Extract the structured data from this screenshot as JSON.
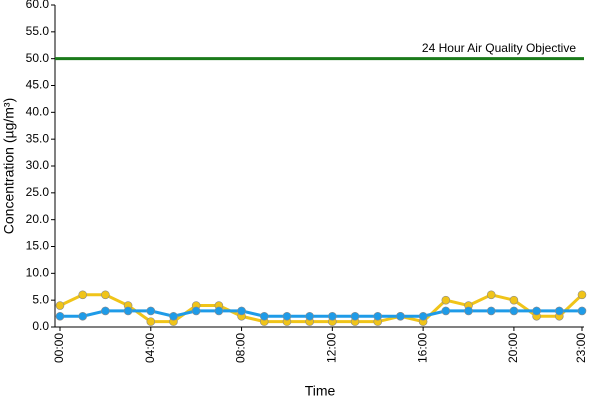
{
  "chart_data": {
    "type": "line",
    "xlabel": "Time",
    "ylabel": "Concentration (µg/m³)",
    "categories": [
      "00:00",
      null,
      null,
      null,
      "04:00",
      null,
      null,
      null,
      "08:00",
      null,
      null,
      null,
      "12:00",
      null,
      null,
      null,
      "16:00",
      null,
      null,
      null,
      "20:00",
      null,
      null,
      "23:00"
    ],
    "series": [
      {
        "color": "#f0c419",
        "values": [
          4,
          6,
          6,
          4,
          1,
          1,
          4,
          4,
          2,
          1,
          1,
          1,
          1,
          1,
          1,
          2,
          1,
          5,
          4,
          6,
          5,
          2,
          2,
          6
        ]
      },
      {
        "color": "#1e9be8",
        "values": [
          2,
          2,
          3,
          3,
          3,
          2,
          3,
          3,
          3,
          2,
          2,
          2,
          2,
          2,
          2,
          2,
          2,
          3,
          3,
          3,
          3,
          3,
          3,
          3
        ]
      }
    ],
    "objective": {
      "value": 50,
      "label": "24 Hour Air Quality Objective",
      "color": "#1a7a1a"
    },
    "ylim": [
      0,
      60
    ],
    "yticks": [
      {
        "value": 0,
        "label": "0.0"
      },
      {
        "value": 5,
        "label": "5.0"
      },
      {
        "value": 10,
        "label": "10.0"
      },
      {
        "value": 15,
        "label": "15.0"
      },
      {
        "value": 20,
        "label": "20.0"
      },
      {
        "value": 25,
        "label": "25.0"
      },
      {
        "value": 30,
        "label": "30.0"
      },
      {
        "value": 35,
        "label": "35.0"
      },
      {
        "value": 40,
        "label": "40.0"
      },
      {
        "value": 45,
        "label": "45.0"
      },
      {
        "value": 50,
        "label": "50.0"
      },
      {
        "value": 55,
        "label": "55.0"
      },
      {
        "value": 60,
        "label": "60.0"
      }
    ],
    "grid": false
  }
}
